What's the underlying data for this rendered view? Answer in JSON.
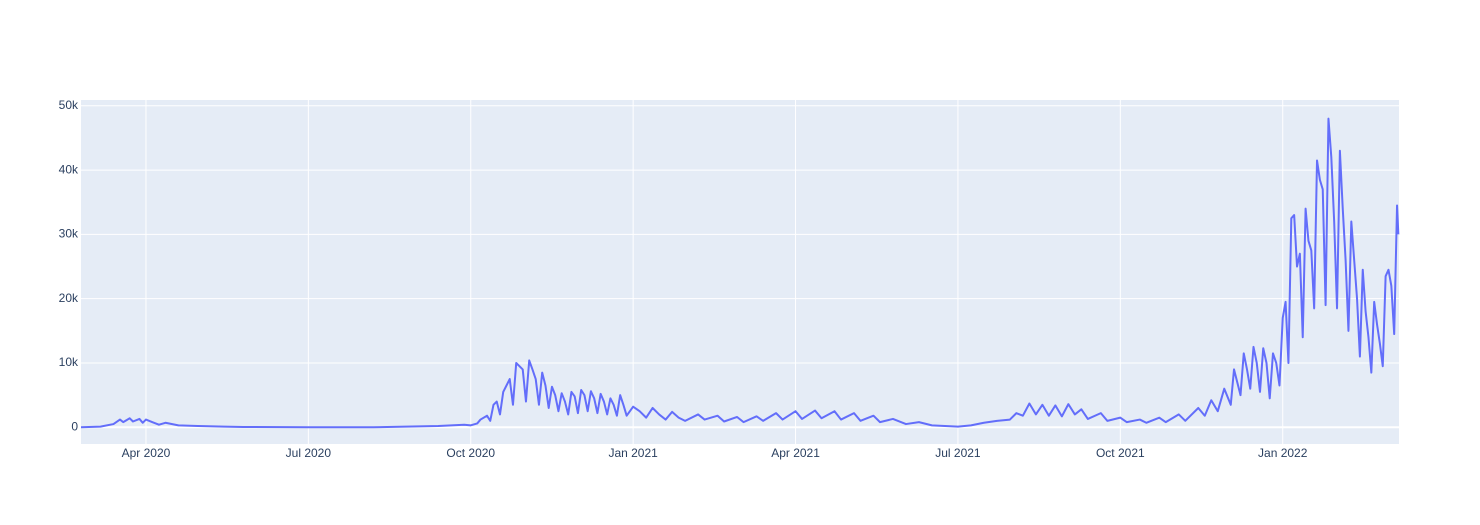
{
  "chart_data": {
    "type": "line",
    "x": [
      2020.15,
      2020.18,
      2020.2,
      2020.21,
      2020.215,
      2020.225,
      2020.23,
      2020.24,
      2020.245,
      2020.25,
      2020.26,
      2020.27,
      2020.28,
      2020.3,
      2020.33,
      2020.37,
      2020.4,
      2020.5,
      2020.6,
      2020.65,
      2020.7,
      2020.72,
      2020.74,
      2020.75,
      2020.76,
      2020.765,
      2020.775,
      2020.78,
      2020.785,
      2020.79,
      2020.795,
      2020.8,
      2020.805,
      2020.81,
      2020.815,
      2020.82,
      2020.825,
      2020.83,
      2020.835,
      2020.84,
      2020.845,
      2020.85,
      2020.855,
      2020.86,
      2020.865,
      2020.87,
      2020.875,
      2020.88,
      2020.885,
      2020.89,
      2020.895,
      2020.9,
      2020.905,
      2020.91,
      2020.915,
      2020.92,
      2020.925,
      2020.93,
      2020.935,
      2020.94,
      2020.945,
      2020.95,
      2020.955,
      2020.96,
      2020.965,
      2020.97,
      2020.975,
      2020.98,
      2020.985,
      2020.99,
      2021.0,
      2021.01,
      2021.02,
      2021.03,
      2021.04,
      2021.05,
      2021.06,
      2021.07,
      2021.08,
      2021.1,
      2021.11,
      2021.13,
      2021.14,
      2021.16,
      2021.17,
      2021.19,
      2021.2,
      2021.22,
      2021.23,
      2021.25,
      2021.26,
      2021.28,
      2021.29,
      2021.31,
      2021.32,
      2021.34,
      2021.35,
      2021.37,
      2021.38,
      2021.4,
      2021.42,
      2021.44,
      2021.46,
      2021.48,
      2021.5,
      2021.52,
      2021.54,
      2021.56,
      2021.58,
      2021.59,
      2021.6,
      2021.61,
      2021.62,
      2021.63,
      2021.64,
      2021.65,
      2021.66,
      2021.67,
      2021.68,
      2021.69,
      2021.7,
      2021.72,
      2021.73,
      2021.75,
      2021.76,
      2021.78,
      2021.79,
      2021.81,
      2021.82,
      2021.84,
      2021.85,
      2021.87,
      2021.88,
      2021.89,
      2021.9,
      2021.91,
      2021.92,
      2021.925,
      2021.93,
      2021.935,
      2021.94,
      2021.945,
      2021.95,
      2021.955,
      2021.96,
      2021.965,
      2021.97,
      2021.975,
      2021.98,
      2021.985,
      2021.99,
      2021.995,
      2022.0,
      2022.0044,
      2022.0088,
      2022.0132,
      2022.0176,
      2022.022,
      2022.0264,
      2022.0308,
      2022.0352,
      2022.0396,
      2022.044,
      2022.0484,
      2022.0528,
      2022.0572,
      2022.0616,
      2022.066,
      2022.0704,
      2022.0748,
      2022.0792,
      2022.0836,
      2022.088,
      2022.0924,
      2022.0968,
      2022.1012,
      2022.1056,
      2022.11,
      2022.1144,
      2022.1188,
      2022.1232,
      2022.1276,
      2022.132,
      2022.1364,
      2022.1408,
      2022.1452,
      2022.1496,
      2022.154,
      2022.1584,
      2022.1628,
      2022.1672,
      2022.1716,
      2022.176,
      2022.178
    ],
    "series": [
      {
        "color": "#636efa",
        "values": [
          0,
          100,
          500,
          1200,
          800,
          1400,
          900,
          1300,
          700,
          1200,
          800,
          400,
          700,
          300,
          200,
          100,
          50,
          0,
          0,
          100,
          200,
          300,
          400,
          300,
          600,
          1200,
          1800,
          1000,
          3500,
          4000,
          2000,
          5500,
          6500,
          7500,
          3500,
          10000,
          9500,
          9000,
          4000,
          10400,
          9000,
          7500,
          3500,
          8500,
          6500,
          3000,
          6300,
          5000,
          2500,
          5300,
          4000,
          2000,
          5500,
          4800,
          2200,
          5800,
          5000,
          2500,
          5600,
          4500,
          2200,
          5200,
          4000,
          2000,
          4500,
          3500,
          1800,
          5000,
          3500,
          1800,
          3200,
          2500,
          1500,
          3000,
          2000,
          1200,
          2400,
          1500,
          1000,
          2000,
          1200,
          1800,
          900,
          1600,
          800,
          1700,
          1000,
          2200,
          1200,
          2500,
          1300,
          2600,
          1400,
          2500,
          1200,
          2200,
          1000,
          1800,
          800,
          1300,
          500,
          800,
          300,
          200,
          100,
          300,
          700,
          1000,
          1200,
          2200,
          1800,
          3700,
          2000,
          3500,
          1800,
          3400,
          1700,
          3600,
          2000,
          2800,
          1300,
          2200,
          1000,
          1500,
          800,
          1200,
          700,
          1500,
          800,
          2000,
          1000,
          3000,
          1800,
          4200,
          2500,
          6000,
          3500,
          9000,
          7000,
          5000,
          11500,
          9000,
          6000,
          12500,
          10000,
          5500,
          12300,
          10000,
          4500,
          11500,
          10000,
          6500,
          17000,
          19500,
          10000,
          32500,
          33000,
          25000,
          27000,
          14000,
          34000,
          29000,
          27500,
          18500,
          41500,
          38500,
          37000,
          19000,
          48000,
          42000,
          32000,
          18500,
          43000,
          34000,
          26000,
          15000,
          32000,
          26000,
          20000,
          11000,
          24500,
          18000,
          14000,
          8500,
          19500,
          16000,
          13000,
          9500,
          23500,
          24500,
          22000,
          14500,
          34500,
          30000
        ]
      }
    ],
    "xlim": [
      2020.15,
      2022.179
    ],
    "xticks": [
      {
        "value": 2020.25,
        "label": "Apr 2020"
      },
      {
        "value": 2020.5,
        "label": "Jul 2020"
      },
      {
        "value": 2020.75,
        "label": "Oct 2020"
      },
      {
        "value": 2021.0,
        "label": "Jan 2021"
      },
      {
        "value": 2021.25,
        "label": "Apr 2021"
      },
      {
        "value": 2021.5,
        "label": "Jul 2021"
      },
      {
        "value": 2021.75,
        "label": "Oct 2021"
      },
      {
        "value": 2022.0,
        "label": "Jan 2022"
      }
    ],
    "ylim": [
      -2600,
      50900
    ],
    "yticks": [
      0,
      {
        "value": 10000,
        "label": "10k"
      },
      {
        "value": 20000,
        "label": "20k"
      },
      {
        "value": 30000,
        "label": "30k"
      },
      {
        "value": 40000,
        "label": "40k"
      },
      {
        "value": 50000,
        "label": "50k"
      }
    ],
    "grid": true
  }
}
